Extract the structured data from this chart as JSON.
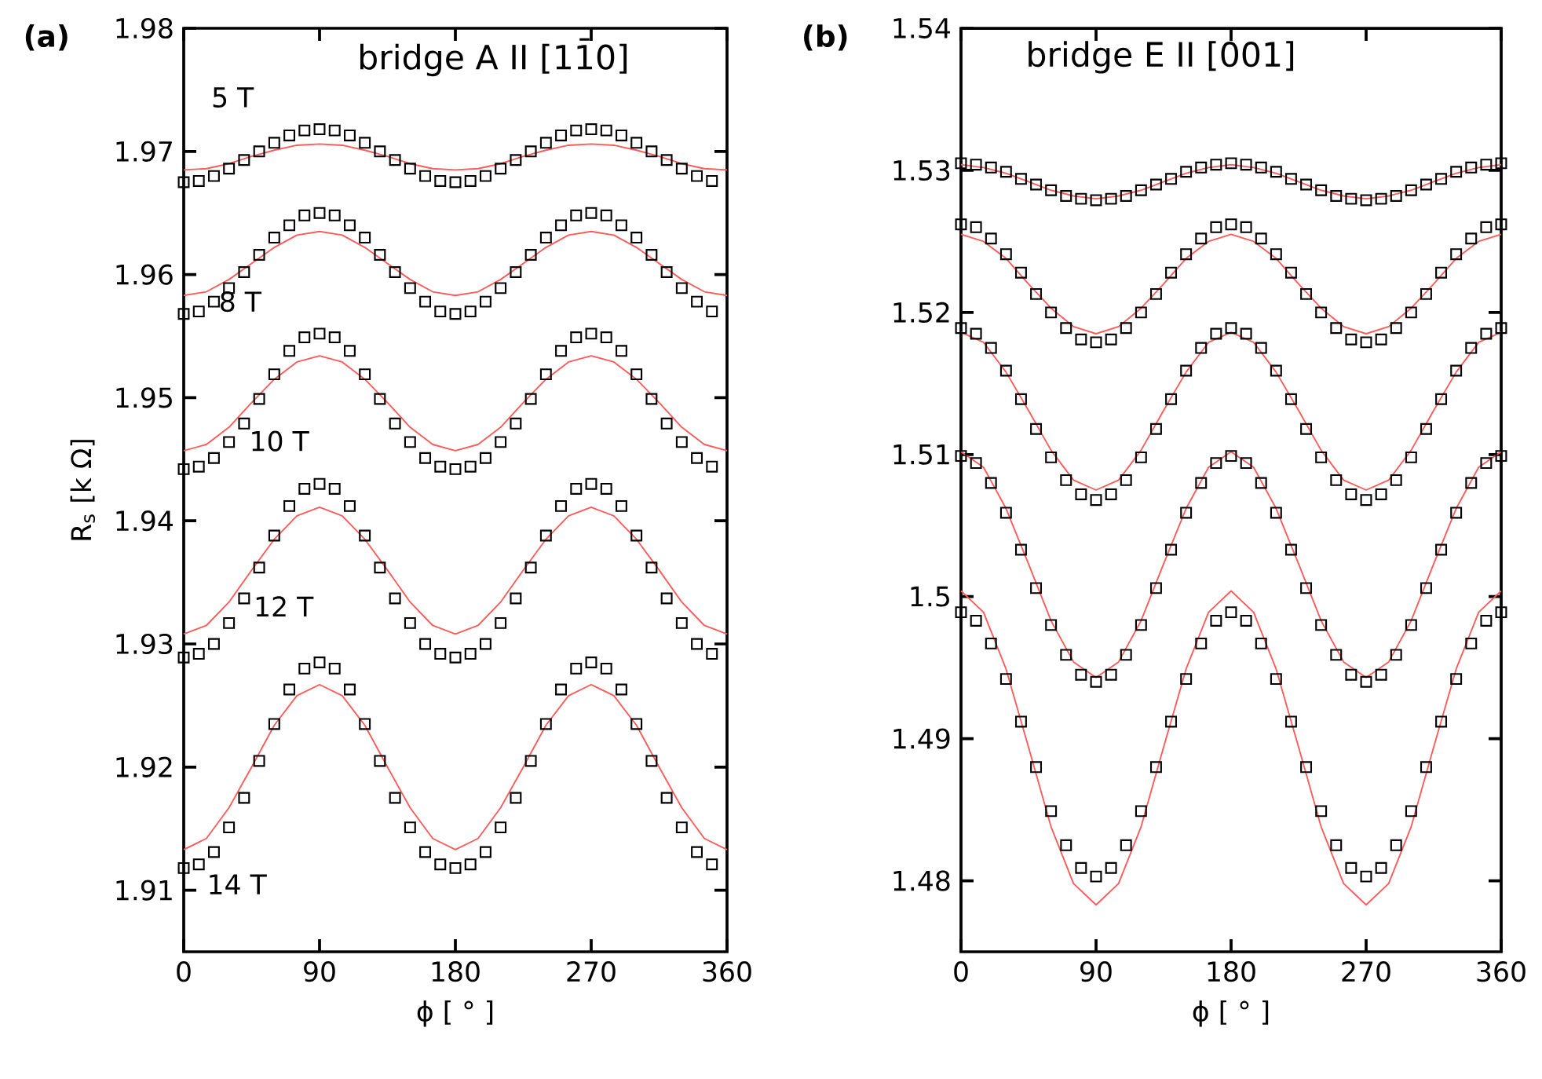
{
  "chart_data": [
    {
      "type": "scatter",
      "title": "bridge A II [11̄0]",
      "xlabel": "ϕ [ ° ]",
      "ylabel": "R$_{s}$ [k Ω]",
      "marker": "square",
      "x": [
        0,
        10,
        20,
        30,
        40,
        50,
        60,
        70,
        80,
        90,
        100,
        110,
        120,
        130,
        140,
        150,
        160,
        170,
        180,
        190,
        200,
        210,
        220,
        230,
        240,
        250,
        260,
        270,
        280,
        290,
        300,
        310,
        320,
        330,
        340,
        350
      ],
      "xlim": [
        0,
        360
      ],
      "xticks": [
        0,
        90,
        180,
        270,
        360
      ],
      "ylim": [
        1.905,
        1.98
      ],
      "yticks": [
        1.91,
        1.92,
        1.93,
        1.94,
        1.95,
        1.96,
        1.97,
        1.98
      ],
      "annotations": [
        "(a)",
        "5 T",
        "8 T",
        "10 T",
        "12 T",
        "14 T"
      ],
      "series": [
        {
          "type": "line",
          "marker": "none",
          "color": "#ff5a5a",
          "x": [
            0,
            15,
            30,
            45,
            60,
            75,
            90,
            105,
            120,
            135,
            150,
            165,
            180,
            195,
            210,
            225,
            240,
            255,
            270,
            285,
            300,
            315,
            330,
            345,
            360
          ],
          "values": [
            1.9685,
            1.9686,
            1.969,
            1.9696,
            1.9701,
            1.9705,
            1.9706,
            1.9705,
            1.9701,
            1.9696,
            1.969,
            1.9686,
            1.9685,
            1.9686,
            1.969,
            1.9696,
            1.9701,
            1.9705,
            1.9706,
            1.9705,
            1.9701,
            1.9696,
            1.969,
            1.9686,
            1.9685
          ]
        },
        {
          "color": "#000000",
          "values": [
            1.9675,
            1.9676,
            1.968,
            1.9686,
            1.9693,
            1.97,
            1.9707,
            1.9713,
            1.9717,
            1.9718,
            1.9717,
            1.9713,
            1.9707,
            1.97,
            1.9693,
            1.9686,
            1.968,
            1.9676,
            1.9675,
            1.9676,
            1.968,
            1.9686,
            1.9693,
            1.97,
            1.9707,
            1.9713,
            1.9717,
            1.9718,
            1.9717,
            1.9713,
            1.9707,
            1.97,
            1.9693,
            1.9686,
            1.968,
            1.9676
          ]
        },
        {
          "type": "line",
          "marker": "none",
          "color": "#ff5a5a",
          "x": [
            0,
            15,
            30,
            45,
            60,
            75,
            90,
            105,
            120,
            135,
            150,
            165,
            180,
            195,
            210,
            225,
            240,
            255,
            270,
            285,
            300,
            315,
            330,
            345,
            360
          ],
          "values": [
            1.9583,
            1.9586,
            1.9596,
            1.9609,
            1.9622,
            1.9632,
            1.9635,
            1.9632,
            1.9622,
            1.9609,
            1.9596,
            1.9586,
            1.9583,
            1.9586,
            1.9596,
            1.9609,
            1.9622,
            1.9632,
            1.9635,
            1.9632,
            1.9622,
            1.9609,
            1.9596,
            1.9586,
            1.9583
          ]
        },
        {
          "color": "#000000",
          "values": [
            1.9568,
            1.957,
            1.9578,
            1.9589,
            1.9602,
            1.9616,
            1.963,
            1.964,
            1.9648,
            1.965,
            1.9648,
            1.964,
            1.963,
            1.9616,
            1.9602,
            1.9589,
            1.9578,
            1.957,
            1.9568,
            1.957,
            1.9578,
            1.9589,
            1.9602,
            1.9616,
            1.963,
            1.964,
            1.9648,
            1.965,
            1.9648,
            1.964,
            1.963,
            1.9616,
            1.9602,
            1.9589,
            1.9578,
            1.957
          ]
        },
        {
          "type": "line",
          "marker": "none",
          "color": "#ff5a5a",
          "x": [
            0,
            15,
            30,
            45,
            60,
            75,
            90,
            105,
            120,
            135,
            150,
            165,
            180,
            195,
            210,
            225,
            240,
            255,
            270,
            285,
            300,
            315,
            330,
            345,
            360
          ],
          "values": [
            1.9457,
            1.9462,
            1.9476,
            1.9496,
            1.9515,
            1.9529,
            1.9534,
            1.9529,
            1.9515,
            1.9496,
            1.9476,
            1.9462,
            1.9457,
            1.9462,
            1.9476,
            1.9496,
            1.9515,
            1.9529,
            1.9534,
            1.9529,
            1.9515,
            1.9496,
            1.9476,
            1.9462,
            1.9457
          ]
        },
        {
          "color": "#000000",
          "values": [
            1.9442,
            1.9444,
            1.9451,
            1.9464,
            1.9479,
            1.9499,
            1.9519,
            1.9538,
            1.9549,
            1.9552,
            1.9549,
            1.9538,
            1.9519,
            1.9499,
            1.9479,
            1.9464,
            1.9451,
            1.9444,
            1.9442,
            1.9444,
            1.9451,
            1.9464,
            1.9479,
            1.9499,
            1.9519,
            1.9538,
            1.9549,
            1.9552,
            1.9549,
            1.9538,
            1.9519,
            1.9499,
            1.9479,
            1.9464,
            1.9451,
            1.9444
          ]
        },
        {
          "type": "line",
          "marker": "none",
          "color": "#ff5a5a",
          "x": [
            0,
            15,
            30,
            45,
            60,
            75,
            90,
            105,
            120,
            135,
            150,
            165,
            180,
            195,
            210,
            225,
            240,
            255,
            270,
            285,
            300,
            315,
            330,
            345,
            360
          ],
          "values": [
            1.9308,
            1.9315,
            1.9334,
            1.936,
            1.9385,
            1.9404,
            1.9411,
            1.9404,
            1.9385,
            1.936,
            1.9334,
            1.9315,
            1.9308,
            1.9315,
            1.9334,
            1.936,
            1.9385,
            1.9404,
            1.9411,
            1.9404,
            1.9385,
            1.936,
            1.9334,
            1.9315,
            1.9308
          ]
        },
        {
          "color": "#000000",
          "values": [
            1.9289,
            1.9292,
            1.93,
            1.9317,
            1.9337,
            1.9362,
            1.9388,
            1.9412,
            1.9426,
            1.943,
            1.9426,
            1.9412,
            1.9388,
            1.9362,
            1.9337,
            1.9317,
            1.93,
            1.9292,
            1.9289,
            1.9292,
            1.93,
            1.9317,
            1.9337,
            1.9362,
            1.9388,
            1.9412,
            1.9426,
            1.943,
            1.9426,
            1.9412,
            1.9388,
            1.9362,
            1.9337,
            1.9317,
            1.93,
            1.9292
          ]
        },
        {
          "type": "line",
          "marker": "none",
          "color": "#ff5a5a",
          "x": [
            0,
            15,
            30,
            45,
            60,
            75,
            90,
            105,
            120,
            135,
            150,
            165,
            180,
            195,
            210,
            225,
            240,
            255,
            270,
            285,
            300,
            315,
            330,
            345,
            360
          ],
          "values": [
            1.9133,
            1.9142,
            1.9167,
            1.92,
            1.9234,
            1.9258,
            1.9267,
            1.9258,
            1.9234,
            1.92,
            1.9167,
            1.9142,
            1.9133,
            1.9142,
            1.9167,
            1.92,
            1.9234,
            1.9258,
            1.9267,
            1.9258,
            1.9234,
            1.92,
            1.9167,
            1.9142,
            1.9133
          ]
        },
        {
          "color": "#000000",
          "values": [
            1.9118,
            1.9121,
            1.9131,
            1.9151,
            1.9175,
            1.9205,
            1.9235,
            1.9263,
            1.928,
            1.9285,
            1.928,
            1.9263,
            1.9235,
            1.9205,
            1.9175,
            1.9151,
            1.9131,
            1.9121,
            1.9118,
            1.9121,
            1.9131,
            1.9151,
            1.9175,
            1.9205,
            1.9235,
            1.9263,
            1.928,
            1.9285,
            1.928,
            1.9263,
            1.9235,
            1.9205,
            1.9175,
            1.9151,
            1.9131,
            1.9121
          ]
        }
      ]
    },
    {
      "type": "scatter",
      "title": "bridge E II [001]",
      "xlabel": "ϕ [ ° ]",
      "marker": "square",
      "x": [
        0,
        10,
        20,
        30,
        40,
        50,
        60,
        70,
        80,
        90,
        100,
        110,
        120,
        130,
        140,
        150,
        160,
        170,
        180,
        190,
        200,
        210,
        220,
        230,
        240,
        250,
        260,
        270,
        280,
        290,
        300,
        310,
        320,
        330,
        340,
        350,
        360
      ],
      "xlim": [
        0,
        360
      ],
      "xticks": [
        0,
        90,
        180,
        270,
        360
      ],
      "ylim": [
        1.475,
        1.54
      ],
      "yticks": [
        1.48,
        1.49,
        1.5,
        1.51,
        1.52,
        1.53,
        1.54
      ],
      "annotations": [
        "(b)"
      ],
      "series": [
        {
          "type": "line",
          "marker": "none",
          "color": "#ff5a5a",
          "x": [
            0,
            15,
            30,
            45,
            60,
            75,
            90,
            105,
            120,
            135,
            150,
            165,
            180,
            195,
            210,
            225,
            240,
            255,
            270,
            285,
            300,
            315,
            330,
            345,
            360
          ],
          "values": [
            1.5304,
            1.5302,
            1.5298,
            1.5292,
            1.5286,
            1.5282,
            1.528,
            1.5282,
            1.5286,
            1.5292,
            1.5298,
            1.5302,
            1.5304,
            1.5302,
            1.5298,
            1.5292,
            1.5286,
            1.5282,
            1.528,
            1.5282,
            1.5286,
            1.5292,
            1.5298,
            1.5302,
            1.5304
          ]
        },
        {
          "color": "#000000",
          "values": [
            1.5305,
            1.5304,
            1.5302,
            1.5299,
            1.5294,
            1.529,
            1.5286,
            1.5282,
            1.528,
            1.5279,
            1.528,
            1.5282,
            1.5286,
            1.529,
            1.5294,
            1.5299,
            1.5302,
            1.5304,
            1.5305,
            1.5304,
            1.5302,
            1.5299,
            1.5294,
            1.529,
            1.5286,
            1.5282,
            1.528,
            1.5279,
            1.528,
            1.5282,
            1.5286,
            1.529,
            1.5294,
            1.5299,
            1.5302,
            1.5304,
            1.5305
          ]
        },
        {
          "type": "line",
          "marker": "none",
          "color": "#ff5a5a",
          "x": [
            0,
            15,
            30,
            45,
            60,
            75,
            90,
            105,
            120,
            135,
            150,
            165,
            180,
            195,
            210,
            225,
            240,
            255,
            270,
            285,
            300,
            315,
            330,
            345,
            360
          ],
          "values": [
            1.5255,
            1.525,
            1.5238,
            1.522,
            1.5203,
            1.519,
            1.5185,
            1.519,
            1.5203,
            1.522,
            1.5238,
            1.525,
            1.5255,
            1.525,
            1.5238,
            1.522,
            1.5203,
            1.519,
            1.5185,
            1.519,
            1.5203,
            1.522,
            1.5238,
            1.525,
            1.5255
          ]
        },
        {
          "color": "#000000",
          "values": [
            1.5262,
            1.526,
            1.5252,
            1.5241,
            1.5228,
            1.5213,
            1.52,
            1.5189,
            1.5181,
            1.5179,
            1.5181,
            1.5189,
            1.52,
            1.5213,
            1.5228,
            1.5241,
            1.5252,
            1.526,
            1.5262,
            1.526,
            1.5252,
            1.5241,
            1.5228,
            1.5213,
            1.52,
            1.5189,
            1.5181,
            1.5179,
            1.5181,
            1.5189,
            1.52,
            1.5213,
            1.5228,
            1.5241,
            1.5252,
            1.526,
            1.5262
          ]
        },
        {
          "type": "line",
          "marker": "none",
          "color": "#ff5a5a",
          "x": [
            0,
            15,
            30,
            45,
            60,
            75,
            90,
            105,
            120,
            135,
            150,
            165,
            180,
            195,
            210,
            225,
            240,
            255,
            270,
            285,
            300,
            315,
            330,
            345,
            360
          ],
          "values": [
            1.5186,
            1.5179,
            1.5158,
            1.5131,
            1.5103,
            1.5082,
            1.5075,
            1.5082,
            1.5103,
            1.5131,
            1.5158,
            1.5179,
            1.5186,
            1.5179,
            1.5158,
            1.5131,
            1.5103,
            1.5082,
            1.5075,
            1.5082,
            1.5103,
            1.5131,
            1.5158,
            1.5179,
            1.5186
          ]
        },
        {
          "color": "#000000",
          "values": [
            1.5189,
            1.5185,
            1.5175,
            1.5159,
            1.5139,
            1.5118,
            1.5098,
            1.5082,
            1.5072,
            1.5068,
            1.5072,
            1.5082,
            1.5098,
            1.5118,
            1.5139,
            1.5159,
            1.5175,
            1.5185,
            1.5189,
            1.5185,
            1.5175,
            1.5159,
            1.5139,
            1.5118,
            1.5098,
            1.5082,
            1.5072,
            1.5068,
            1.5072,
            1.5082,
            1.5098,
            1.5118,
            1.5139,
            1.5159,
            1.5175,
            1.5185,
            1.5189
          ]
        },
        {
          "type": "line",
          "marker": "none",
          "color": "#ff5a5a",
          "x": [
            0,
            15,
            30,
            45,
            60,
            75,
            90,
            105,
            120,
            135,
            150,
            165,
            180,
            195,
            210,
            225,
            240,
            255,
            270,
            285,
            300,
            315,
            330,
            345,
            360
          ],
          "values": [
            1.5102,
            1.5091,
            1.5062,
            1.5023,
            1.4983,
            1.4954,
            1.4943,
            1.4954,
            1.4983,
            1.5023,
            1.5062,
            1.5091,
            1.5102,
            1.5091,
            1.5062,
            1.5023,
            1.4983,
            1.4954,
            1.4943,
            1.4954,
            1.4983,
            1.5023,
            1.5062,
            1.5091,
            1.5102
          ]
        },
        {
          "color": "#000000",
          "values": [
            1.5099,
            1.5094,
            1.508,
            1.5059,
            1.5033,
            1.5006,
            1.498,
            1.4959,
            1.4945,
            1.494,
            1.4945,
            1.4959,
            1.498,
            1.5006,
            1.5033,
            1.5059,
            1.508,
            1.5094,
            1.5099,
            1.5094,
            1.508,
            1.5059,
            1.5033,
            1.5006,
            1.498,
            1.4959,
            1.4945,
            1.494,
            1.4945,
            1.4959,
            1.498,
            1.5006,
            1.5033,
            1.5059,
            1.508,
            1.5094,
            1.5099
          ]
        },
        {
          "type": "line",
          "marker": "none",
          "color": "#ff5a5a",
          "x": [
            0,
            15,
            30,
            45,
            60,
            75,
            90,
            105,
            120,
            135,
            150,
            165,
            180,
            195,
            210,
            225,
            240,
            255,
            270,
            285,
            300,
            315,
            330,
            345,
            360
          ],
          "values": [
            1.5004,
            1.4989,
            1.4949,
            1.4894,
            1.4838,
            1.4798,
            1.4783,
            1.4798,
            1.4838,
            1.4894,
            1.4949,
            1.4989,
            1.5004,
            1.4989,
            1.4949,
            1.4894,
            1.4838,
            1.4798,
            1.4783,
            1.4798,
            1.4838,
            1.4894,
            1.4949,
            1.4989,
            1.5004
          ]
        },
        {
          "color": "#000000",
          "values": [
            1.4989,
            1.4983,
            1.4967,
            1.4942,
            1.4912,
            1.488,
            1.4849,
            1.4825,
            1.4809,
            1.4803,
            1.4809,
            1.4825,
            1.4849,
            1.488,
            1.4912,
            1.4942,
            1.4967,
            1.4983,
            1.4989,
            1.4983,
            1.4967,
            1.4942,
            1.4912,
            1.488,
            1.4849,
            1.4825,
            1.4809,
            1.4803,
            1.4809,
            1.4825,
            1.4849,
            1.488,
            1.4912,
            1.4942,
            1.4967,
            1.4983,
            1.4989
          ]
        }
      ]
    }
  ]
}
